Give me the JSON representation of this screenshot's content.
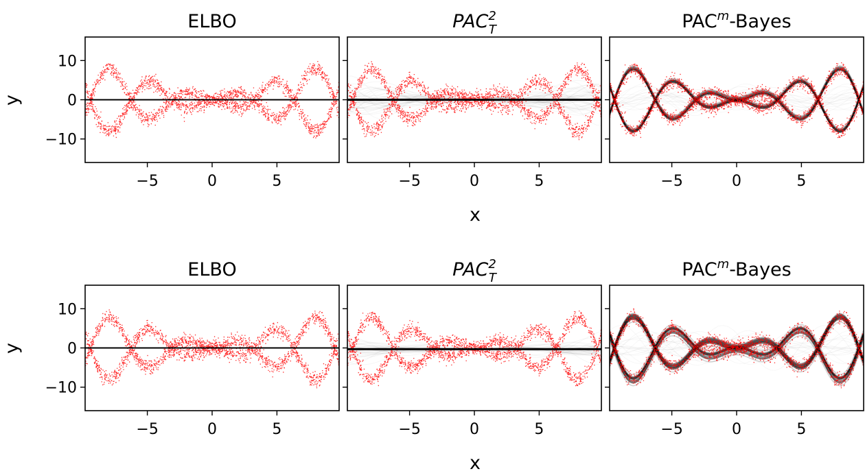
{
  "figure": {
    "xlabel": "x",
    "ylabel": "y"
  },
  "chart_data": [
    {
      "type": "scatter",
      "title_main": "ELBO",
      "title_sup": "",
      "title_sub": "",
      "title_rest": "",
      "italic": false,
      "row": 0,
      "col": 0,
      "xlim": [
        -9.8,
        9.8
      ],
      "ylim": [
        -16,
        16
      ],
      "xticks": [
        -5,
        0,
        5
      ],
      "yticks": [
        10,
        0,
        -10
      ],
      "xtick_labels": [
        "−5",
        "0",
        "5"
      ],
      "ytick_labels": [
        "10",
        "0",
        "−10"
      ],
      "data_color": "#ff0000",
      "data_description_series": [
        "y = +x*sin(x)",
        "y = -x*sin(x)"
      ],
      "prediction": {
        "kind": "flat",
        "value": 0,
        "spread": "none"
      }
    },
    {
      "type": "scatter",
      "title_main": "PAC",
      "title_sup": "2",
      "title_sub": "T",
      "title_rest": "",
      "italic": true,
      "row": 0,
      "col": 1,
      "xlim": [
        -9.8,
        9.8
      ],
      "ylim": [
        -16,
        16
      ],
      "xticks": [
        -5,
        0,
        5
      ],
      "yticks": [
        10,
        0,
        -10
      ],
      "xtick_labels": [
        "−5",
        "0",
        "5"
      ],
      "ytick_labels": [
        "10",
        "0",
        "−10"
      ],
      "data_color": "#ff0000",
      "prediction": {
        "kind": "flat",
        "value": 0,
        "spread": "wide"
      }
    },
    {
      "type": "scatter",
      "title_main": "PAC",
      "title_sup": "m",
      "title_sub": "",
      "title_rest": "-Bayes",
      "italic": false,
      "row": 0,
      "col": 2,
      "xlim": [
        -9.8,
        9.8
      ],
      "ylim": [
        -16,
        16
      ],
      "xticks": [
        -5,
        0,
        5
      ],
      "yticks": [
        10,
        0,
        -10
      ],
      "xtick_labels": [
        "−5",
        "0",
        "5"
      ],
      "ytick_labels": [
        "10",
        "0",
        "−10"
      ],
      "data_color": "#ff0000",
      "prediction": {
        "kind": "bimodal",
        "value": 0,
        "spread": "tight"
      }
    },
    {
      "type": "scatter",
      "title_main": "ELBO",
      "title_sup": "",
      "title_sub": "",
      "title_rest": "",
      "italic": false,
      "row": 1,
      "col": 0,
      "xlim": [
        -9.8,
        9.8
      ],
      "ylim": [
        -16,
        16
      ],
      "xticks": [
        -5,
        0,
        5
      ],
      "yticks": [
        10,
        0,
        -10
      ],
      "xtick_labels": [
        "−5",
        "0",
        "5"
      ],
      "ytick_labels": [
        "10",
        "0",
        "−10"
      ],
      "data_color": "#ff0000",
      "prediction": {
        "kind": "flat",
        "value": 0,
        "spread": "none"
      }
    },
    {
      "type": "scatter",
      "title_main": "PAC",
      "title_sup": "2",
      "title_sub": "T",
      "title_rest": "",
      "italic": true,
      "row": 1,
      "col": 1,
      "xlim": [
        -9.8,
        9.8
      ],
      "ylim": [
        -16,
        16
      ],
      "xticks": [
        -5,
        0,
        5
      ],
      "yticks": [
        10,
        0,
        -10
      ],
      "xtick_labels": [
        "−5",
        "0",
        "5"
      ],
      "ytick_labels": [
        "10",
        "0",
        "−10"
      ],
      "data_color": "#ff0000",
      "prediction": {
        "kind": "flat",
        "value": -0.3,
        "spread": "medium"
      }
    },
    {
      "type": "scatter",
      "title_main": "PAC",
      "title_sup": "m",
      "title_sub": "",
      "title_rest": "-Bayes",
      "italic": false,
      "row": 1,
      "col": 2,
      "xlim": [
        -9.8,
        9.8
      ],
      "ylim": [
        -16,
        16
      ],
      "xticks": [
        -5,
        0,
        5
      ],
      "yticks": [
        10,
        0,
        -10
      ],
      "xtick_labels": [
        "−5",
        "0",
        "5"
      ],
      "ytick_labels": [
        "10",
        "0",
        "−10"
      ],
      "data_color": "#ff0000",
      "prediction": {
        "kind": "bimodal",
        "value": 0,
        "spread": "thick"
      }
    }
  ]
}
